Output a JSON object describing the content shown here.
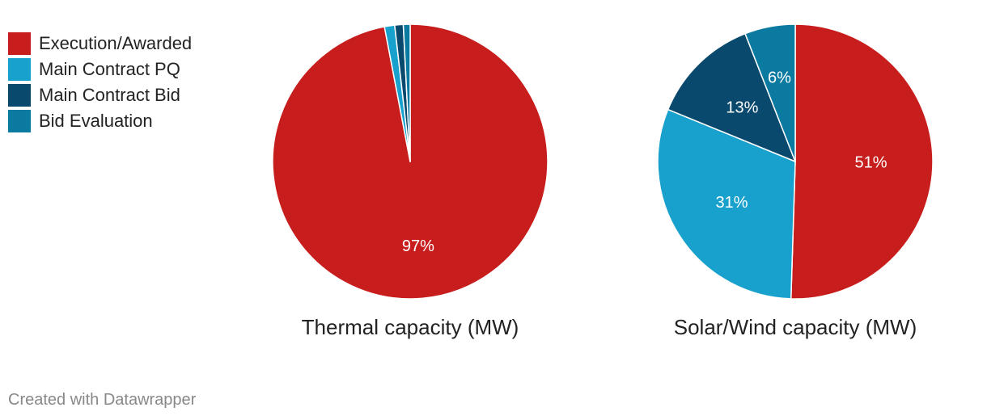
{
  "legend": [
    {
      "label": "Execution/Awarded",
      "color": "#c71e1d"
    },
    {
      "label": "Main Contract PQ",
      "color": "#18a1cd"
    },
    {
      "label": "Main Contract Bid",
      "color": "#09496e"
    },
    {
      "label": "Bid Evaluation",
      "color": "#0b7aa1"
    }
  ],
  "footer": "Created with Datawrapper",
  "chart_data": [
    {
      "type": "pie",
      "title": "Thermal capacity (MW)",
      "categories": [
        "Execution/Awarded",
        "Main Contract PQ",
        "Main Contract Bid",
        "Bid Evaluation"
      ],
      "values": [
        97,
        1.2,
        1.0,
        0.8
      ],
      "colors": [
        "#c71e1d",
        "#18a1cd",
        "#09496e",
        "#0b7aa1"
      ],
      "data_labels": [
        "97%",
        "",
        "",
        ""
      ]
    },
    {
      "type": "pie",
      "title": "Solar/Wind capacity (MW)",
      "categories": [
        "Execution/Awarded",
        "Main Contract PQ",
        "Main Contract Bid",
        "Bid Evaluation"
      ],
      "values": [
        51,
        31,
        13,
        6
      ],
      "colors": [
        "#c71e1d",
        "#18a1cd",
        "#09496e",
        "#0b7aa1"
      ],
      "data_labels": [
        "51%",
        "31%",
        "13%",
        "6%"
      ]
    }
  ]
}
